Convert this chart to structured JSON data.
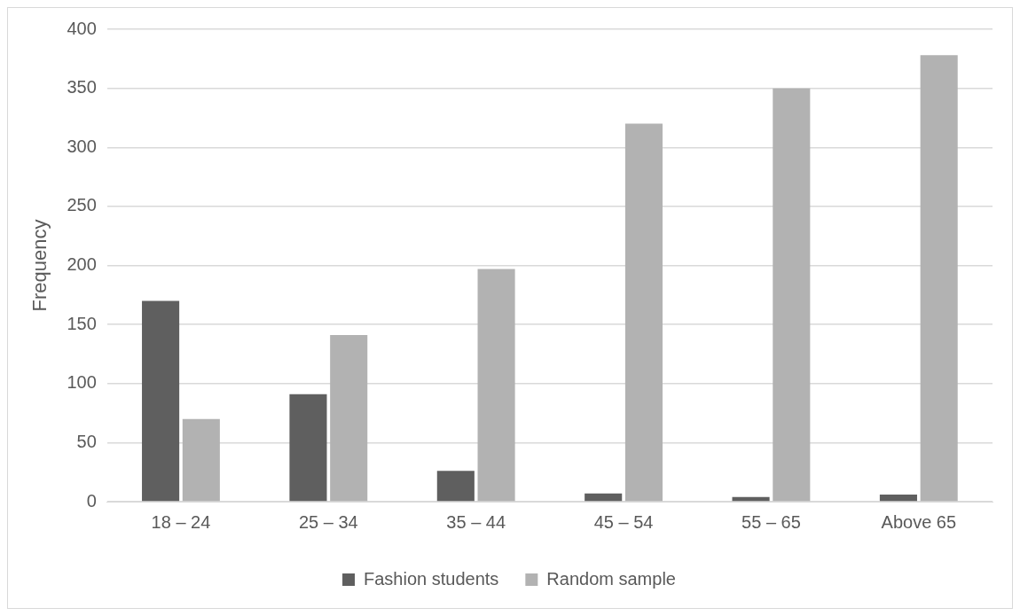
{
  "chart_data": {
    "type": "bar",
    "ylabel": "Frequency",
    "categories": [
      "18 – 24",
      "25 – 34",
      "35 – 44",
      "45 – 54",
      "55 – 65",
      "Above 65"
    ],
    "series": [
      {
        "name": "Fashion students",
        "color": "#5f5f5f",
        "values": [
          170,
          91,
          26,
          7,
          4,
          6
        ]
      },
      {
        "name": "Random sample",
        "color": "#b2b2b2",
        "values": [
          70,
          141,
          197,
          320,
          350,
          378
        ]
      }
    ],
    "ylim": [
      0,
      400
    ],
    "yticks": [
      0,
      50,
      100,
      150,
      200,
      250,
      300,
      350,
      400
    ],
    "grid": "y",
    "legend": "bottom"
  }
}
